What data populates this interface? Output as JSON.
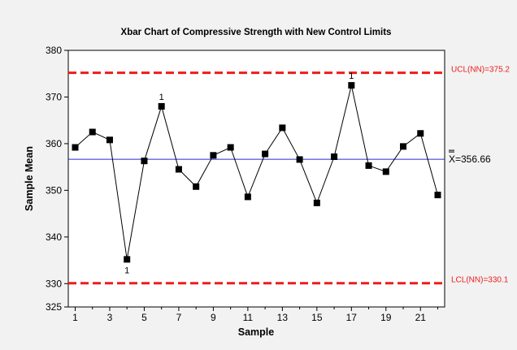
{
  "chart_data": {
    "type": "line",
    "title": "Xbar Chart of Compressive Strength with New Control Limits",
    "xlabel": "Sample",
    "ylabel": "Sample Mean",
    "xlim": [
      0.6,
      22.4
    ],
    "ylim": [
      325,
      380
    ],
    "x_ticks": [
      1,
      3,
      5,
      7,
      9,
      11,
      13,
      15,
      17,
      19,
      21
    ],
    "x_minor_ticks": [
      2,
      4,
      6,
      8,
      10,
      12,
      14,
      16,
      18,
      20,
      22
    ],
    "y_ticks": [
      325,
      330,
      340,
      350,
      360,
      370,
      380
    ],
    "series": [
      {
        "name": "",
        "color": "#000000",
        "marker": "square",
        "x": [
          1,
          2,
          3,
          4,
          5,
          6,
          7,
          8,
          9,
          10,
          11,
          12,
          13,
          14,
          15,
          16,
          17,
          18,
          19,
          20,
          21,
          22
        ],
        "values": [
          359.2,
          362.5,
          360.8,
          335.2,
          356.3,
          368.0,
          354.5,
          350.8,
          357.5,
          359.2,
          348.6,
          357.8,
          363.4,
          356.6,
          347.3,
          357.2,
          372.5,
          355.3,
          354.0,
          359.4,
          362.2,
          349.0
        ]
      }
    ],
    "reference_lines": [
      {
        "label": "UCL(NN)=375.2",
        "value": 375.2,
        "color": "#ee1c1c",
        "style": "dashed"
      },
      {
        "label": "=356.66",
        "value": 356.66,
        "color": "#2b2bd0",
        "style": "solid",
        "symbol": "X"
      },
      {
        "label": "LCL(NN)=330.1",
        "value": 330.1,
        "color": "#ee1c1c",
        "style": "dashed"
      }
    ],
    "annotations": [
      {
        "x": 4,
        "text": "1",
        "position": "below"
      },
      {
        "x": 6,
        "text": "1",
        "position": "above"
      },
      {
        "x": 17,
        "text": "1",
        "position": "above"
      }
    ],
    "grid": false,
    "colors": {
      "background": "#f2f2f2",
      "plot_background": "#ffffff",
      "limit": "#ee1c1c",
      "center": "#2b2bd0",
      "label_text": "#ee1c1c"
    }
  }
}
